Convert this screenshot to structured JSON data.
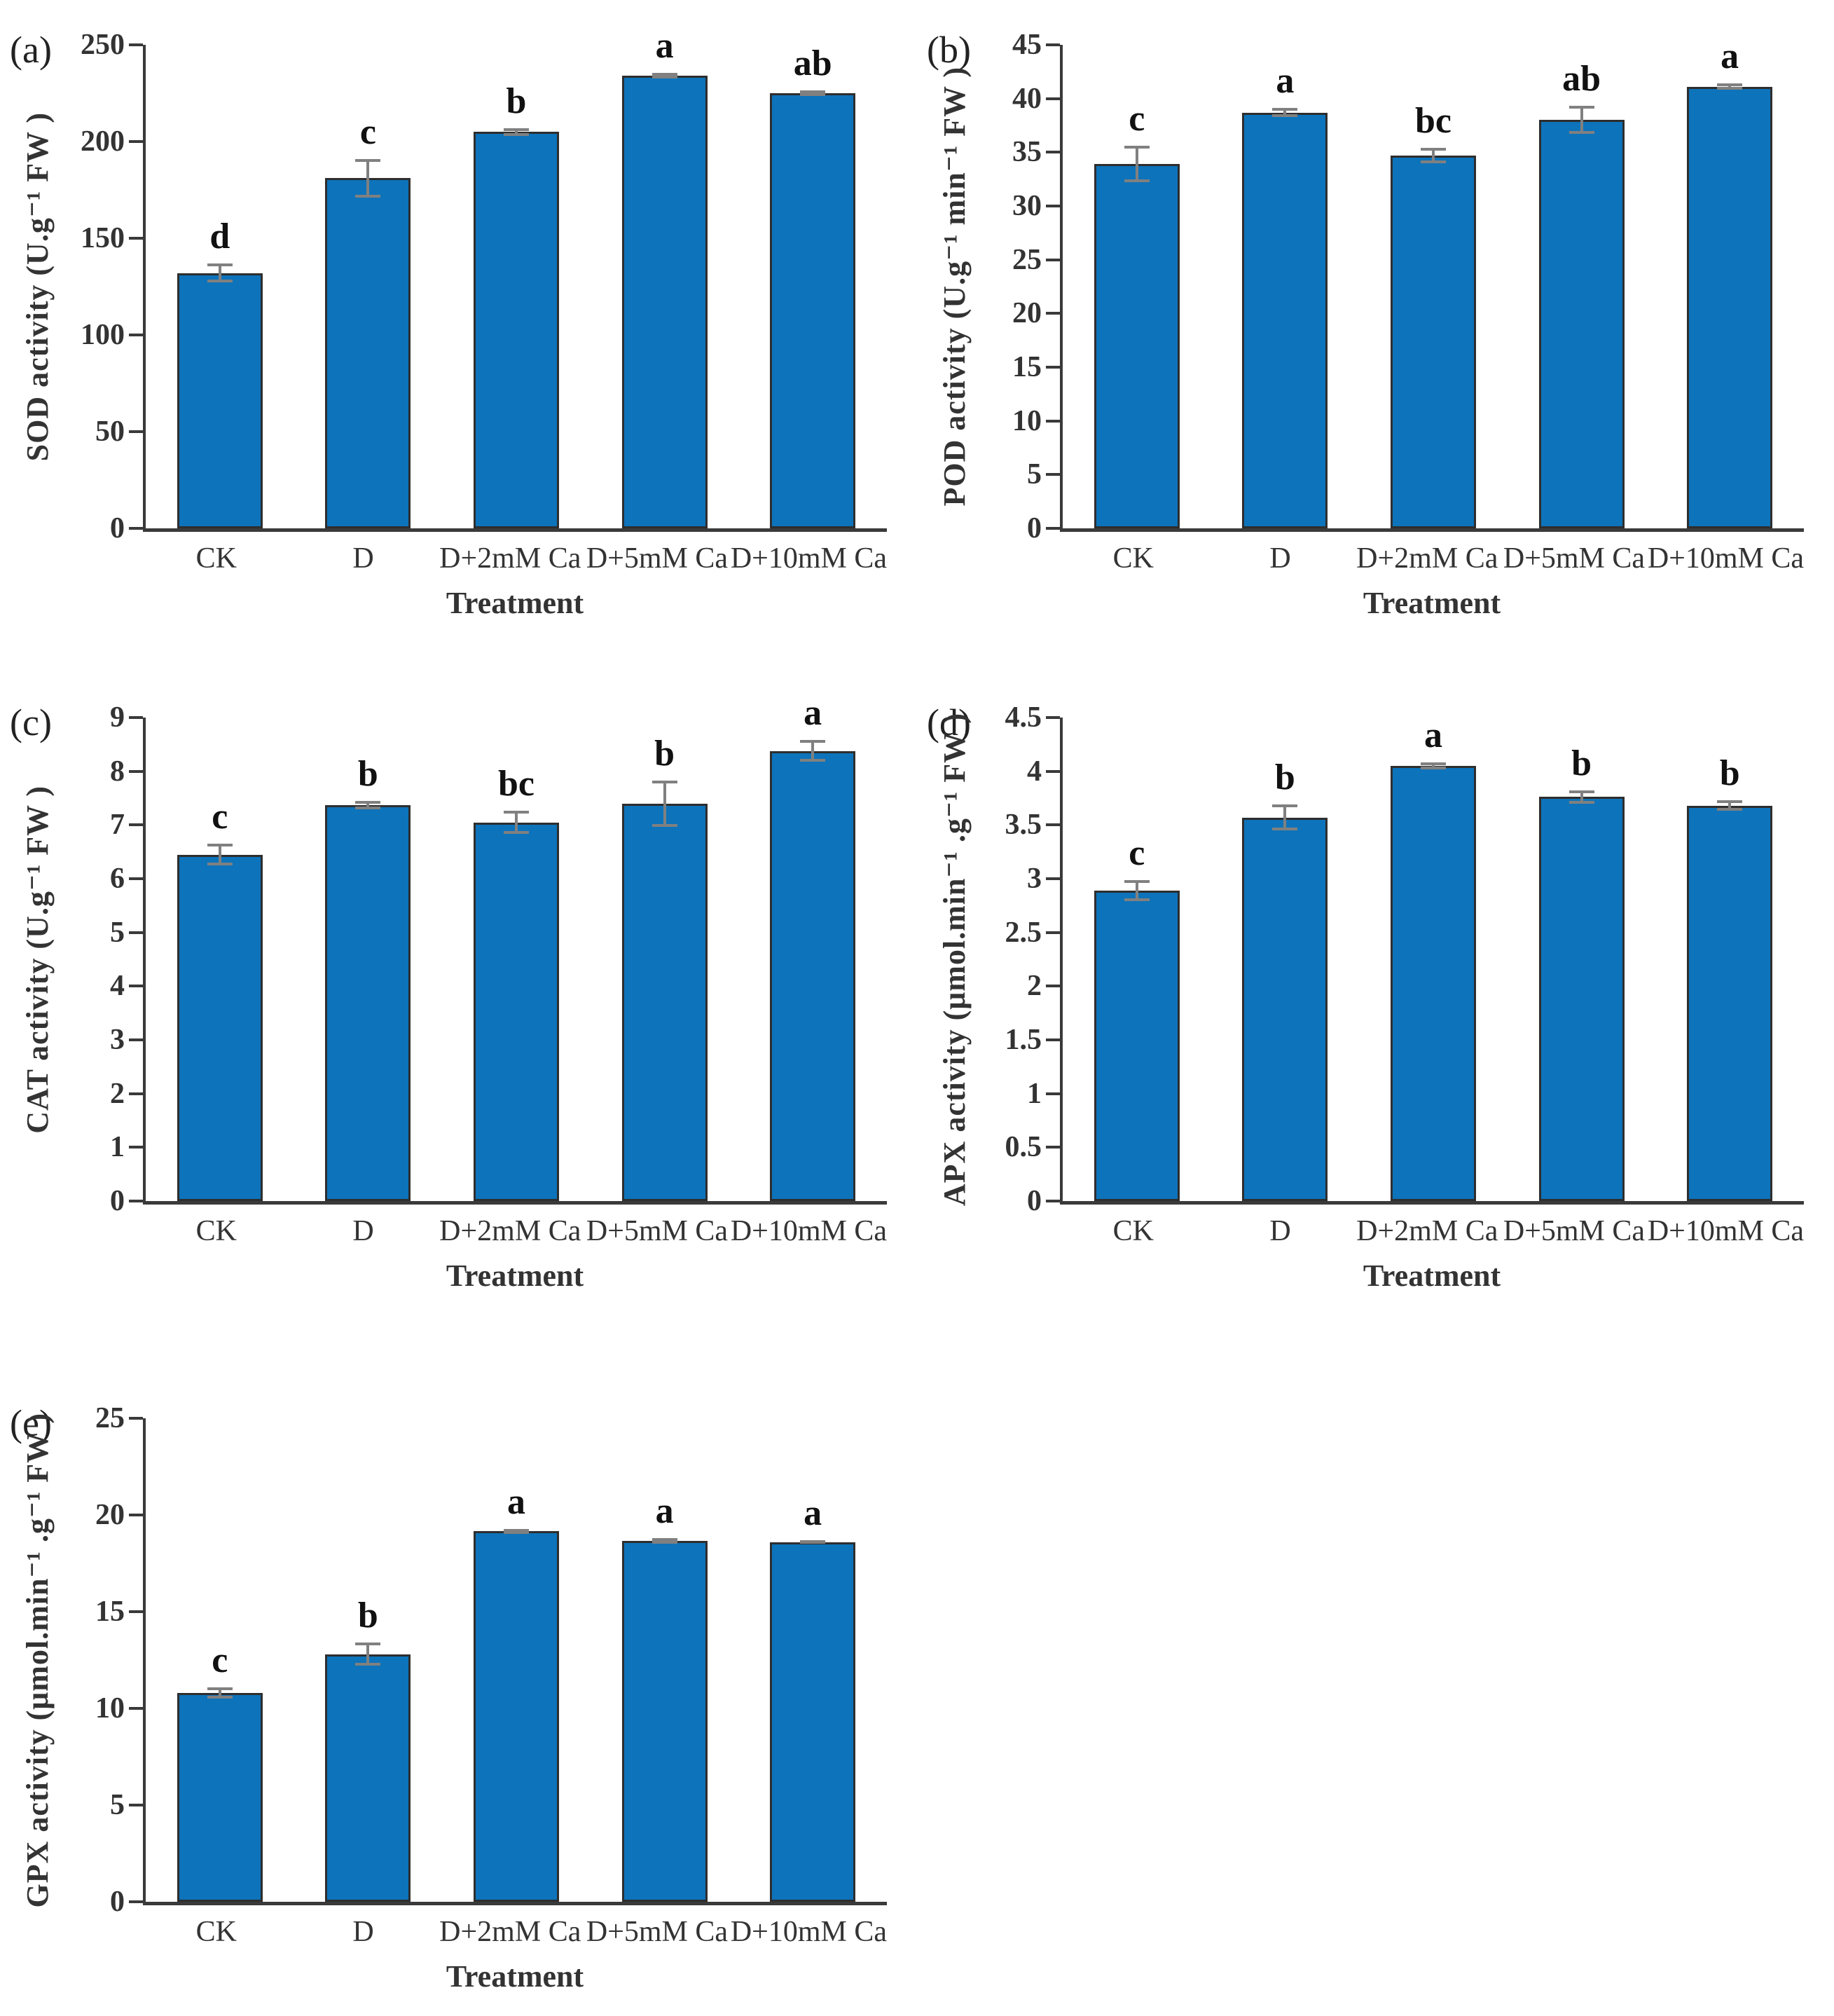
{
  "style": {
    "bar_color": "#0d73ba",
    "bar_border_color": "#2e2e2e",
    "error_bar_color": "#808080",
    "axis_color": "#3a3a3a",
    "text_color": "#333333",
    "background": "#ffffff"
  },
  "chart_data": [
    {
      "type": "bar",
      "panel_label": "(a)",
      "ylabel": "SOD activity (U.g⁻¹ FW )",
      "xlabel": "Treatment",
      "categories": [
        "CK",
        "D",
        "D+2mM Ca",
        "D+5mM Ca",
        "D+10mM Ca"
      ],
      "values": [
        132,
        181,
        205,
        234,
        225
      ],
      "errors": [
        5,
        10,
        2,
        1.5,
        1.5
      ],
      "sig_letters": [
        "d",
        "c",
        "b",
        "a",
        "ab"
      ],
      "ylim": [
        0,
        250
      ],
      "yticks": [
        0,
        50,
        100,
        150,
        200,
        250
      ],
      "grid": false,
      "legend": "none",
      "bar_color": "#0d73ba"
    },
    {
      "type": "bar",
      "panel_label": "(b)",
      "ylabel": "POD activity (U.g⁻¹ min⁻¹ FW )",
      "xlabel": "Treatment",
      "categories": [
        "CK",
        "D",
        "D+2mM Ca",
        "D+5mM Ca",
        "D+10mM Ca"
      ],
      "values": [
        33.9,
        38.7,
        34.7,
        38.0,
        41.1
      ],
      "errors": [
        1.7,
        0.4,
        0.7,
        1.3,
        0.3
      ],
      "sig_letters": [
        "c",
        "a",
        "bc",
        "ab",
        "a"
      ],
      "ylim": [
        0,
        45
      ],
      "yticks": [
        0,
        5,
        10,
        15,
        20,
        25,
        30,
        35,
        40,
        45
      ],
      "grid": false,
      "legend": "none",
      "bar_color": "#0d73ba"
    },
    {
      "type": "bar",
      "panel_label": "(c)",
      "ylabel": "CAT activity (U.g⁻¹ FW )",
      "xlabel": "Treatment",
      "categories": [
        "CK",
        "D",
        "D+2mM Ca",
        "D+5mM Ca",
        "D+10mM Ca"
      ],
      "values": [
        6.45,
        7.37,
        7.05,
        7.4,
        8.38
      ],
      "errors": [
        0.2,
        0.08,
        0.22,
        0.43,
        0.2
      ],
      "sig_letters": [
        "c",
        "b",
        "bc",
        "b",
        "a"
      ],
      "ylim": [
        0,
        9
      ],
      "yticks": [
        0,
        1,
        2,
        3,
        4,
        5,
        6,
        7,
        8,
        9
      ],
      "grid": false,
      "legend": "none",
      "bar_color": "#0d73ba"
    },
    {
      "type": "bar",
      "panel_label": "(d)",
      "ylabel": "APX activity (μmol.min⁻¹ .g⁻¹ FW )",
      "xlabel": "Treatment",
      "categories": [
        "CK",
        "D",
        "D+2mM Ca",
        "D+5mM Ca",
        "D+10mM Ca"
      ],
      "values": [
        2.89,
        3.57,
        4.05,
        3.76,
        3.68
      ],
      "errors": [
        0.1,
        0.12,
        0.03,
        0.06,
        0.05
      ],
      "sig_letters": [
        "c",
        "b",
        "a",
        "b",
        "b"
      ],
      "ylim": [
        0,
        4.5
      ],
      "yticks": [
        0,
        0.5,
        1,
        1.5,
        2,
        2.5,
        3,
        3.5,
        4,
        4.5
      ],
      "grid": false,
      "legend": "none",
      "bar_color": "#0d73ba"
    },
    {
      "type": "bar",
      "panel_label": "(e)",
      "ylabel": "GPX activity (μmol.min⁻¹ .g⁻¹ FW )",
      "xlabel": "Treatment",
      "categories": [
        "CK",
        "D",
        "D+2mM Ca",
        "D+5mM Ca",
        "D+10mM Ca"
      ],
      "values": [
        10.8,
        12.8,
        19.15,
        18.65,
        18.6
      ],
      "errors": [
        0.3,
        0.6,
        0.12,
        0.15,
        0.1
      ],
      "sig_letters": [
        "c",
        "b",
        "a",
        "a",
        "a"
      ],
      "ylim": [
        0,
        25
      ],
      "yticks": [
        0,
        5,
        10,
        15,
        20,
        25
      ],
      "grid": false,
      "legend": "none",
      "bar_color": "#0d73ba"
    }
  ]
}
